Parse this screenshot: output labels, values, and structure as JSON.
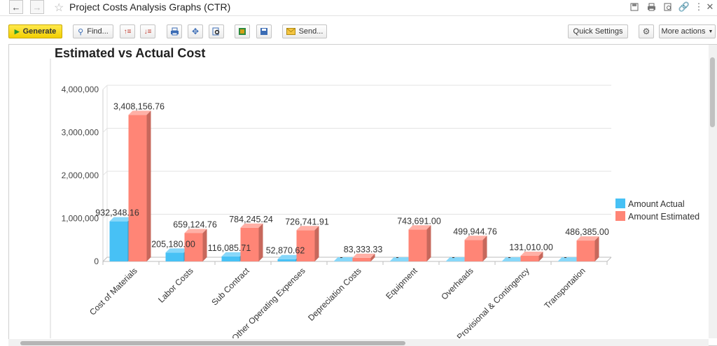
{
  "window": {
    "title": "Project Costs Analysis Graphs (CTR)"
  },
  "toolbar": {
    "generate_label": "Generate",
    "find_label": "Find...",
    "send_label": "Send...",
    "quick_settings_label": "Quick Settings",
    "more_actions_label": "More actions"
  },
  "chart_data": {
    "type": "bar",
    "title": "Estimated vs Actual Cost",
    "xlabel": "",
    "ylabel": "",
    "ylim": [
      0,
      4000000
    ],
    "yticks": [
      "0",
      "1,000,000",
      "2,000,000",
      "3,000,000",
      "4,000,000"
    ],
    "grid": true,
    "legend_position": "right",
    "categories": [
      "Cost of Materials",
      "Labor Costs",
      "Sub Contract",
      "Other Operating Expenses",
      "Depreciation Costs",
      "Equipment",
      "Overheads",
      "Provisional & Contingency",
      "Transportation"
    ],
    "series": [
      {
        "name": "Amount Actual",
        "color": "#47c1f5",
        "values": [
          932348.16,
          205180.0,
          116085.71,
          52870.62,
          0,
          0,
          0,
          0,
          0
        ],
        "labels": [
          "932,348.16",
          "205,180.00",
          "116,085.71",
          "52,870.62",
          "-",
          "-",
          "-",
          "-",
          "-"
        ]
      },
      {
        "name": "Amount Estimated",
        "color": "#ff8576",
        "values": [
          3408156.76,
          659124.76,
          784245.24,
          726741.91,
          83333.33,
          743691.0,
          499944.76,
          131010.0,
          486385.0
        ],
        "labels": [
          "3,408,156.76",
          "659,124.76",
          "784,245.24",
          "726,741.91",
          "83,333.33",
          "743,691.00",
          "499,944.76",
          "131,010.00",
          "486,385.00"
        ]
      }
    ]
  }
}
